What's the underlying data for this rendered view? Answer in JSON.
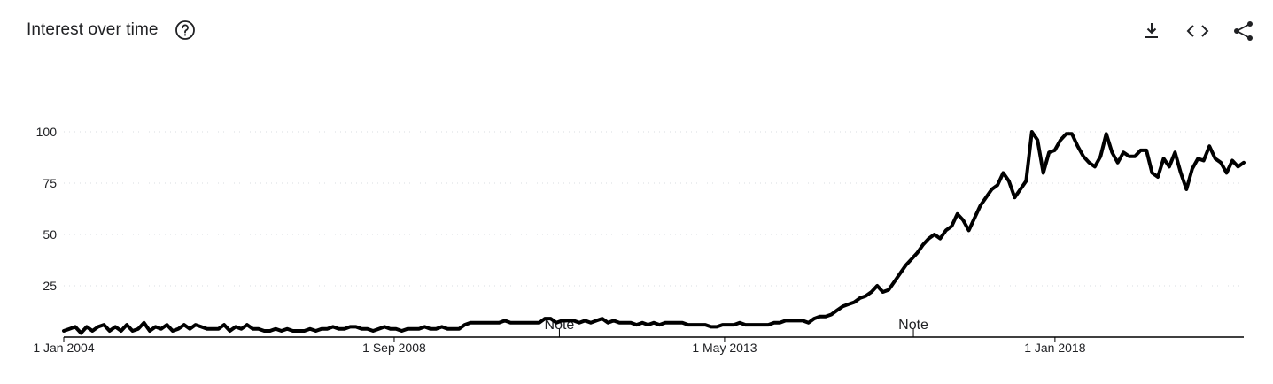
{
  "header": {
    "title": "Interest over time",
    "help_icon": "help-circle-icon",
    "actions": [
      {
        "name": "download-csv-button",
        "icon": "download-icon"
      },
      {
        "name": "embed-button",
        "icon": "code-icon"
      },
      {
        "name": "share-button",
        "icon": "share-icon"
      }
    ]
  },
  "colors": {
    "line": "#000000",
    "grid": "#dadce0",
    "text": "#202124"
  },
  "chart_data": {
    "type": "line",
    "title": "Interest over time",
    "xlabel": "",
    "ylabel": "",
    "ylim": [
      0,
      100
    ],
    "yticks": [
      25,
      50,
      75,
      100
    ],
    "ytick_labels": [
      "25",
      "50",
      "75",
      "100"
    ],
    "x_start": "2004-01",
    "x_end": "2020-09",
    "xtick_labels": [
      "1 Jan 2004",
      "1 Sep 2008",
      "1 May 2013",
      "1 Jan 2018"
    ],
    "xtick_dates": [
      "2004-01",
      "2008-09",
      "2013-05",
      "2018-01"
    ],
    "annotations": [
      {
        "label": "Note",
        "date": "2011-01"
      },
      {
        "label": "Note",
        "date": "2016-01"
      }
    ],
    "grid": true,
    "series": [
      {
        "values": [
          3,
          4,
          5,
          2,
          5,
          3,
          5,
          6,
          3,
          5,
          3,
          6,
          3,
          4,
          7,
          3,
          5,
          4,
          6,
          3,
          4,
          6,
          4,
          6,
          5,
          4,
          4,
          4,
          6,
          3,
          5,
          4,
          6,
          4,
          4,
          3,
          3,
          4,
          3,
          4,
          3,
          3,
          3,
          4,
          3,
          4,
          4,
          5,
          4,
          4,
          5,
          5,
          4,
          4,
          3,
          4,
          5,
          4,
          4,
          3,
          4,
          4,
          4,
          5,
          4,
          4,
          5,
          4,
          4,
          4,
          6,
          7,
          7,
          7,
          7,
          7,
          7,
          8,
          7,
          7,
          7,
          7,
          7,
          7,
          9,
          9,
          7,
          8,
          8,
          8,
          7,
          8,
          7,
          8,
          9,
          7,
          8,
          7,
          7,
          7,
          6,
          7,
          6,
          7,
          6,
          7,
          7,
          7,
          7,
          6,
          6,
          6,
          6,
          5,
          5,
          6,
          6,
          6,
          7,
          6,
          6,
          6,
          6,
          6,
          7,
          7,
          8,
          8,
          8,
          8,
          7,
          9,
          10,
          10,
          11,
          13,
          15,
          16,
          17,
          19,
          20,
          22,
          25,
          22,
          23,
          27,
          31,
          35,
          38,
          41,
          45,
          48,
          50,
          48,
          52,
          54,
          60,
          57,
          52,
          58,
          64,
          68,
          72,
          74,
          80,
          76,
          68,
          72,
          76,
          100,
          96,
          80,
          90,
          91,
          96,
          99,
          99,
          93,
          88,
          85,
          83,
          88,
          99,
          90,
          85,
          90,
          88,
          88,
          91,
          91,
          80,
          78,
          87,
          83,
          90,
          80,
          72,
          82,
          87,
          86,
          93,
          87,
          85,
          80,
          86,
          83,
          85
        ]
      }
    ]
  }
}
